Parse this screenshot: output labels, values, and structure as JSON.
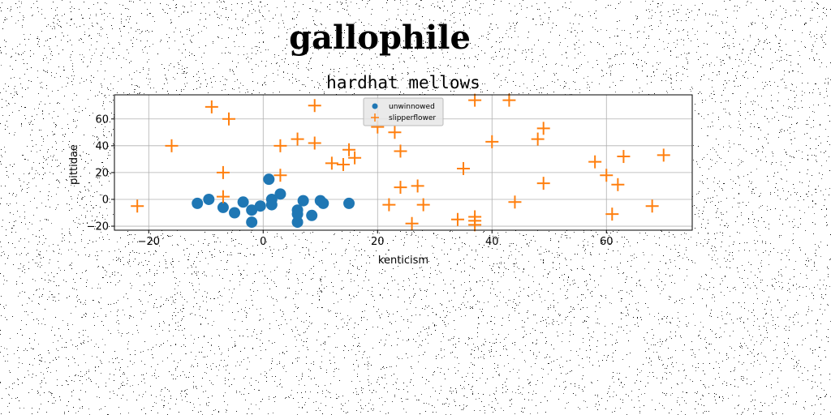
{
  "chart_data": {
    "type": "scatter",
    "title": "gallophile",
    "subtitle": "hardhat mellows",
    "xlabel": "kenticism",
    "ylabel": "pittidae",
    "xlim": [
      -26,
      75
    ],
    "ylim": [
      -23,
      78
    ],
    "xticks": [
      -20,
      0,
      20,
      40,
      60
    ],
    "yticks": [
      -20,
      0,
      20,
      40,
      60
    ],
    "grid": true,
    "legend_position": "top-center",
    "background_noise": true,
    "series": [
      {
        "name": "unwinnowed",
        "marker": "circle",
        "color": "#1f77b4",
        "points": [
          [
            -11.5,
            -3
          ],
          [
            -9.5,
            0
          ],
          [
            -7,
            -6
          ],
          [
            -5,
            -10
          ],
          [
            -3.5,
            -2
          ],
          [
            -2,
            -8
          ],
          [
            -2,
            -17
          ],
          [
            -0.5,
            -5
          ],
          [
            1,
            15
          ],
          [
            1.5,
            0
          ],
          [
            1.5,
            -4
          ],
          [
            3,
            4
          ],
          [
            6,
            -17
          ],
          [
            6,
            -8
          ],
          [
            6,
            -11
          ],
          [
            7,
            -1
          ],
          [
            8.5,
            -12
          ],
          [
            10,
            -1
          ],
          [
            10.5,
            -3
          ],
          [
            15,
            -3
          ]
        ]
      },
      {
        "name": "slipperflower",
        "marker": "plus",
        "color": "#ff7f0e",
        "points": [
          [
            -22,
            -5
          ],
          [
            -16,
            40
          ],
          [
            -9,
            69
          ],
          [
            -7,
            2
          ],
          [
            -7,
            20
          ],
          [
            -6,
            60
          ],
          [
            3,
            40
          ],
          [
            3,
            18
          ],
          [
            6,
            45
          ],
          [
            9,
            70
          ],
          [
            9,
            42
          ],
          [
            12,
            27
          ],
          [
            14,
            26
          ],
          [
            15,
            37
          ],
          [
            16,
            31
          ],
          [
            20,
            54
          ],
          [
            22,
            -4
          ],
          [
            23,
            50
          ],
          [
            24,
            36
          ],
          [
            24,
            9
          ],
          [
            26,
            -18
          ],
          [
            27,
            10
          ],
          [
            28,
            -4
          ],
          [
            34,
            -15
          ],
          [
            35,
            23
          ],
          [
            37,
            74
          ],
          [
            37,
            -13
          ],
          [
            37,
            -16
          ],
          [
            37,
            -19
          ],
          [
            40,
            43
          ],
          [
            43,
            74
          ],
          [
            44,
            -2
          ],
          [
            48,
            45
          ],
          [
            49,
            53
          ],
          [
            49,
            12
          ],
          [
            58,
            28
          ],
          [
            60,
            18
          ],
          [
            61,
            -11
          ],
          [
            62,
            11
          ],
          [
            63,
            32
          ],
          [
            68,
            -5
          ],
          [
            70,
            33
          ]
        ]
      }
    ]
  }
}
